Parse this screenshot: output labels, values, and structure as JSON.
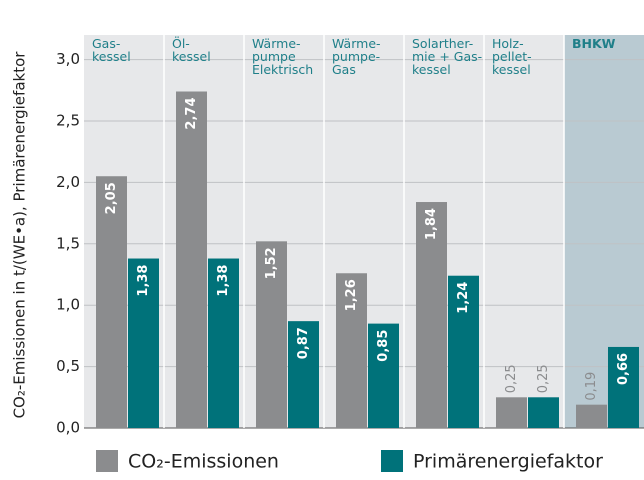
{
  "chart_data": {
    "type": "bar",
    "y_label": "CO₂-Emissionen in t/(WE•a), Primärenergiefaktor",
    "categories": [
      "Gas-\nkessel",
      "Öl-\nkessel",
      "Wärme-\npumpe\nElektrisch",
      "Wärme-\npumpe-\nGas",
      "Solarther-\nmie + Gas-\nkessel",
      "Holz-\npellet-\nkessel",
      "BHKW"
    ],
    "highlight": 6,
    "series": [
      {
        "name": "CO₂-Emissionen",
        "color": "#8b8c8e",
        "values": [
          2.05,
          2.74,
          1.52,
          1.26,
          1.84,
          0.25,
          0.19
        ],
        "value_labels": [
          "2,05",
          "2,74",
          "1,52",
          "1,26",
          "1,84",
          "0,25",
          "0,19"
        ]
      },
      {
        "name": "Primärenergiefaktor",
        "color": "#00727a",
        "values": [
          1.38,
          1.38,
          0.87,
          0.85,
          1.24,
          0.25,
          0.66
        ],
        "value_labels": [
          "1,38",
          "1,38",
          "0,87",
          "0,85",
          "1,24",
          "0,25",
          "0,66"
        ]
      }
    ],
    "ylim": [
      0,
      3.2
    ],
    "yticks": [
      {
        "value": 0,
        "label": "0,0"
      },
      {
        "value": 0.5,
        "label": "0,5"
      },
      {
        "value": 1,
        "label": "1,0"
      },
      {
        "value": 1.5,
        "label": "1,5"
      },
      {
        "value": 2,
        "label": "2,0"
      },
      {
        "value": 2.5,
        "label": "2,5"
      },
      {
        "value": 3,
        "label": "3,0"
      }
    ],
    "grid": true
  }
}
